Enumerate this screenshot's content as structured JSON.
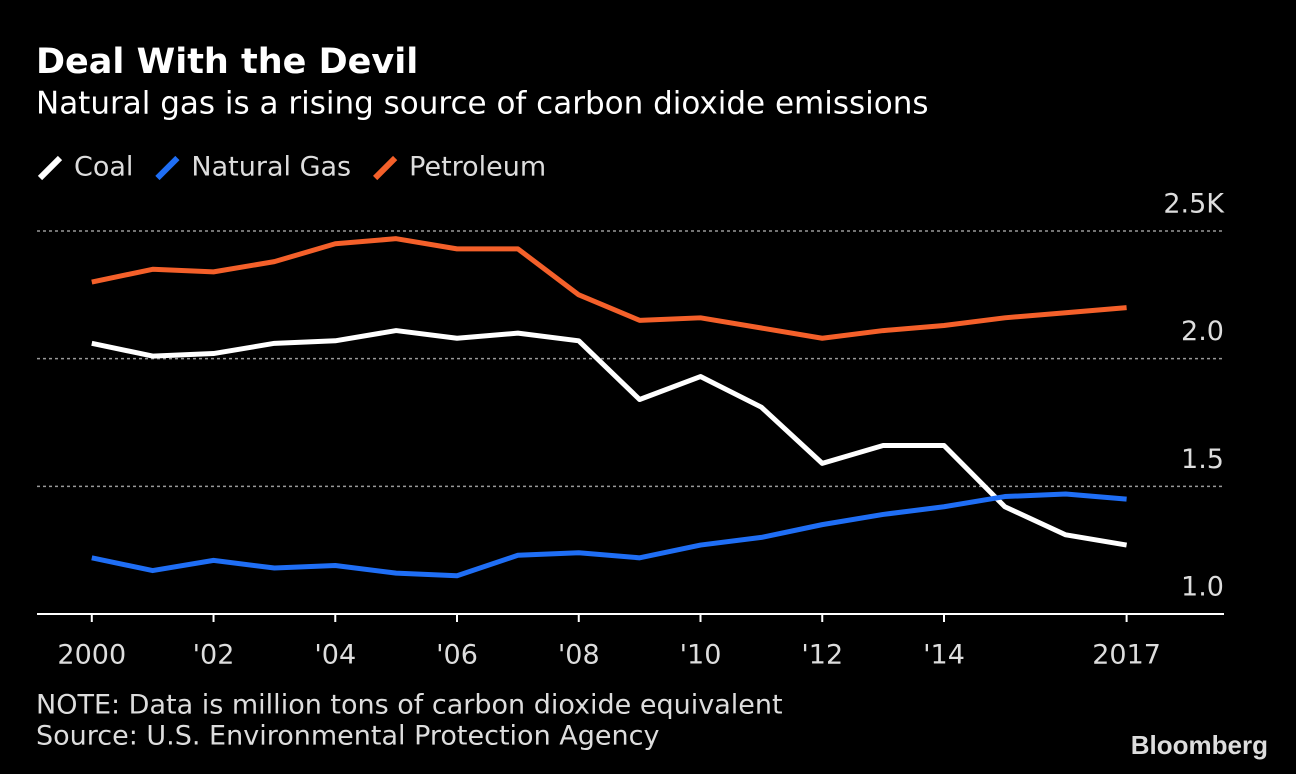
{
  "chart_data": {
    "type": "line",
    "title": "Deal With the Devil",
    "subtitle": "Natural gas is a rising source of carbon dioxide emissions",
    "note": "NOTE: Data is million tons of carbon dioxide equivalent",
    "source": "Source: U.S. Environmental Protection Agency",
    "brand": "Bloomberg",
    "x": [
      2000,
      2001,
      2002,
      2003,
      2004,
      2005,
      2006,
      2007,
      2008,
      2009,
      2010,
      2011,
      2012,
      2013,
      2014,
      2015,
      2016,
      2017
    ],
    "series": [
      {
        "name": "Coal",
        "color": "#ffffff",
        "values": [
          2.06,
          2.01,
          2.02,
          2.06,
          2.07,
          2.11,
          2.08,
          2.1,
          2.07,
          1.84,
          1.93,
          1.81,
          1.59,
          1.66,
          1.66,
          1.42,
          1.31,
          1.27
        ]
      },
      {
        "name": "Natural Gas",
        "color": "#1f6ef5",
        "values": [
          1.22,
          1.17,
          1.21,
          1.18,
          1.19,
          1.16,
          1.15,
          1.23,
          1.24,
          1.22,
          1.27,
          1.3,
          1.35,
          1.39,
          1.42,
          1.46,
          1.47,
          1.45
        ]
      },
      {
        "name": "Petroleum",
        "color": "#f4602a",
        "values": [
          2.3,
          2.35,
          2.34,
          2.38,
          2.45,
          2.47,
          2.43,
          2.43,
          2.25,
          2.15,
          2.16,
          2.12,
          2.08,
          2.11,
          2.13,
          2.16,
          2.18,
          2.2
        ]
      }
    ],
    "xlim": [
      1999.1,
      2018.6
    ],
    "xticks": [
      2000,
      {
        "value": 2002,
        "label": "'02"
      },
      {
        "value": 2004,
        "label": "'04"
      },
      {
        "value": 2006,
        "label": "'06"
      },
      {
        "value": 2008,
        "label": "'08"
      },
      {
        "value": 2010,
        "label": "'10"
      },
      {
        "value": 2012,
        "label": "'12"
      },
      {
        "value": 2014,
        "label": "'14"
      },
      2017
    ],
    "ylim": [
      1,
      2.5
    ],
    "yticks": [
      {
        "value": 1,
        "label": "1.0"
      },
      1.5,
      {
        "value": 2,
        "label": "2.0"
      },
      {
        "value": 2.5,
        "label": "2.5K"
      }
    ],
    "grid": true,
    "legend": "top-left"
  }
}
